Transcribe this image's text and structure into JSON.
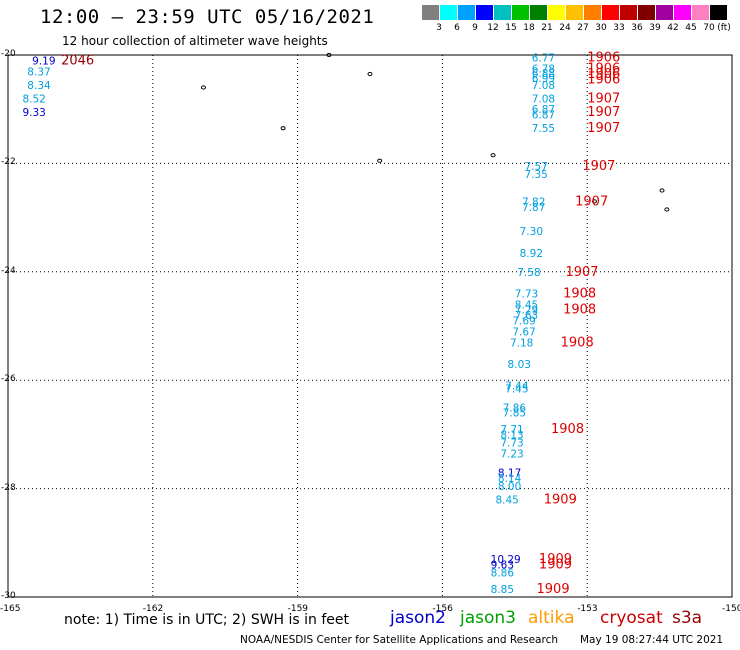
{
  "header": {
    "title": "12:00 — 23:59 UTC 05/16/2021",
    "subtitle": "12 hour collection of altimeter wave heights"
  },
  "scale": {
    "labels": [
      "3",
      "6",
      "9",
      "12",
      "15",
      "18",
      "21",
      "24",
      "27",
      "30",
      "33",
      "36",
      "39",
      "42",
      "45",
      "70",
      "(ft)"
    ],
    "colors": [
      "#808080",
      "#00ffff",
      "#00a0ff",
      "#0000ff",
      "#00c0c0",
      "#00c000",
      "#008000",
      "#ffff00",
      "#ffc000",
      "#ff8000",
      "#ff0000",
      "#c00000",
      "#800000",
      "#a000a0",
      "#ff00ff",
      "#ff80c0",
      "#000000"
    ]
  },
  "axes": {
    "lat_labels": [
      "-20",
      "-22",
      "-24",
      "-26",
      "-28",
      "-30"
    ],
    "lon_labels": [
      "-165",
      "-162",
      "-159",
      "-156",
      "-153",
      "-150"
    ],
    "lat_range": [
      -30,
      -20
    ],
    "lon_range": [
      -165,
      -150
    ]
  },
  "footer": {
    "note": "note: 1) Time is in UTC; 2) SWH is in feet",
    "credit": "NOAA/NESDIS Center for Satellite Applications and Research",
    "timestamp": "May 19 08:27:44 UTC 2021"
  },
  "satellites": [
    {
      "name": "jason2",
      "color": "#0000cc"
    },
    {
      "name": "jason3",
      "color": "#00a000"
    },
    {
      "name": "altika",
      "color": "#ff9900"
    },
    {
      "name": "cryosat",
      "color": "#cc0000"
    },
    {
      "name": "s3a",
      "color": "#990000"
    }
  ],
  "colors": {
    "swh_light_blue": "#00a0e0",
    "swh_dark_blue": "#0000cc",
    "time_red": "#e00000",
    "time_dark_red": "#990000"
  },
  "chart_data": {
    "type": "scatter",
    "observations": [
      {
        "lon": -164.5,
        "lat": -20.1,
        "text": "9.19",
        "kind": "swh",
        "color": "#0000cc"
      },
      {
        "lon": -164.6,
        "lat": -20.3,
        "text": "8.37",
        "kind": "swh",
        "color": "#00a0e0"
      },
      {
        "lon": -164.6,
        "lat": -20.55,
        "text": "8.34",
        "kind": "swh",
        "color": "#00a0e0"
      },
      {
        "lon": -164.7,
        "lat": -20.8,
        "text": "8.52",
        "kind": "swh",
        "color": "#00a0e0"
      },
      {
        "lon": -164.7,
        "lat": -21.05,
        "text": "9.33",
        "kind": "swh",
        "color": "#0000cc"
      },
      {
        "lon": -163.9,
        "lat": -20.1,
        "text": "2046",
        "kind": "time",
        "color": "#990000"
      },
      {
        "lon": -154.15,
        "lat": -20.05,
        "text": "6.77",
        "kind": "swh",
        "color": "#00a0e0"
      },
      {
        "lon": -154.15,
        "lat": -20.25,
        "text": "6.78",
        "kind": "swh",
        "color": "#00a0e0"
      },
      {
        "lon": -154.15,
        "lat": -20.33,
        "text": "6.88",
        "kind": "swh",
        "color": "#00a0e0"
      },
      {
        "lon": -154.15,
        "lat": -20.42,
        "text": "6.99",
        "kind": "swh",
        "color": "#00a0e0"
      },
      {
        "lon": -154.15,
        "lat": -20.55,
        "text": "7.08",
        "kind": "swh",
        "color": "#00a0e0"
      },
      {
        "lon": -154.15,
        "lat": -20.8,
        "text": "7.08",
        "kind": "swh",
        "color": "#00a0e0"
      },
      {
        "lon": -154.15,
        "lat": -21.0,
        "text": "6.87",
        "kind": "swh",
        "color": "#00a0e0"
      },
      {
        "lon": -154.15,
        "lat": -21.1,
        "text": "6.87",
        "kind": "swh",
        "color": "#00a0e0"
      },
      {
        "lon": -154.15,
        "lat": -21.35,
        "text": "7.55",
        "kind": "swh",
        "color": "#00a0e0"
      },
      {
        "lon": -153.0,
        "lat": -20.05,
        "text": "1906",
        "kind": "time",
        "color": "#e00000"
      },
      {
        "lon": -153.0,
        "lat": -20.25,
        "text": "1906",
        "kind": "time",
        "color": "#e00000"
      },
      {
        "lon": -153.0,
        "lat": -20.35,
        "text": "1906",
        "kind": "time",
        "color": "#e00000"
      },
      {
        "lon": -153.0,
        "lat": -20.45,
        "text": "1906",
        "kind": "time",
        "color": "#e00000"
      },
      {
        "lon": -153.0,
        "lat": -20.8,
        "text": "1907",
        "kind": "time",
        "color": "#e00000"
      },
      {
        "lon": -153.0,
        "lat": -21.05,
        "text": "1907",
        "kind": "time",
        "color": "#e00000"
      },
      {
        "lon": -153.0,
        "lat": -21.35,
        "text": "1907",
        "kind": "time",
        "color": "#e00000"
      },
      {
        "lon": -154.3,
        "lat": -22.05,
        "text": "7.57",
        "kind": "swh",
        "color": "#00a0e0"
      },
      {
        "lon": -154.3,
        "lat": -22.2,
        "text": "7.35",
        "kind": "swh",
        "color": "#00a0e0"
      },
      {
        "lon": -153.1,
        "lat": -22.05,
        "text": "1907",
        "kind": "time",
        "color": "#e00000"
      },
      {
        "lon": -154.35,
        "lat": -22.7,
        "text": "7.82",
        "kind": "swh",
        "color": "#00a0e0"
      },
      {
        "lon": -154.35,
        "lat": -22.8,
        "text": "7.87",
        "kind": "swh",
        "color": "#00a0e0"
      },
      {
        "lon": -153.25,
        "lat": -22.7,
        "text": "1907",
        "kind": "time",
        "color": "#e00000"
      },
      {
        "lon": -154.4,
        "lat": -23.25,
        "text": "7.30",
        "kind": "swh",
        "color": "#00a0e0"
      },
      {
        "lon": -154.4,
        "lat": -23.65,
        "text": "8.92",
        "kind": "swh",
        "color": "#00a0e0"
      },
      {
        "lon": -154.45,
        "lat": -24.0,
        "text": "7.58",
        "kind": "swh",
        "color": "#00a0e0"
      },
      {
        "lon": -153.45,
        "lat": -24.0,
        "text": "1907",
        "kind": "time",
        "color": "#e00000"
      },
      {
        "lon": -154.5,
        "lat": -24.4,
        "text": "7.73",
        "kind": "swh",
        "color": "#00a0e0"
      },
      {
        "lon": -154.5,
        "lat": -24.6,
        "text": "8.45",
        "kind": "swh",
        "color": "#00a0e0"
      },
      {
        "lon": -154.5,
        "lat": -24.7,
        "text": "7.29",
        "kind": "swh",
        "color": "#00a0e0"
      },
      {
        "lon": -154.5,
        "lat": -24.8,
        "text": "7.63",
        "kind": "swh",
        "color": "#00a0e0"
      },
      {
        "lon": -154.55,
        "lat": -24.9,
        "text": "7.69",
        "kind": "swh",
        "color": "#00a0e0"
      },
      {
        "lon": -154.55,
        "lat": -25.1,
        "text": "7.67",
        "kind": "swh",
        "color": "#00a0e0"
      },
      {
        "lon": -154.6,
        "lat": -25.3,
        "text": "7.18",
        "kind": "swh",
        "color": "#00a0e0"
      },
      {
        "lon": -153.5,
        "lat": -24.4,
        "text": "1908",
        "kind": "time",
        "color": "#e00000"
      },
      {
        "lon": -153.5,
        "lat": -24.7,
        "text": "1908",
        "kind": "time",
        "color": "#e00000"
      },
      {
        "lon": -153.55,
        "lat": -25.3,
        "text": "1908",
        "kind": "time",
        "color": "#e00000"
      },
      {
        "lon": -154.65,
        "lat": -25.7,
        "text": "8.03",
        "kind": "swh",
        "color": "#00a0e0"
      },
      {
        "lon": -154.7,
        "lat": -26.1,
        "text": "7.44",
        "kind": "swh",
        "color": "#00a0e0"
      },
      {
        "lon": -154.7,
        "lat": -26.15,
        "text": "7.45",
        "kind": "swh",
        "color": "#00a0e0"
      },
      {
        "lon": -154.75,
        "lat": -26.5,
        "text": "7.86",
        "kind": "swh",
        "color": "#00a0e0"
      },
      {
        "lon": -154.75,
        "lat": -26.6,
        "text": "7.85",
        "kind": "swh",
        "color": "#00a0e0"
      },
      {
        "lon": -154.8,
        "lat": -26.9,
        "text": "7.71",
        "kind": "swh",
        "color": "#00a0e0"
      },
      {
        "lon": -154.8,
        "lat": -27.0,
        "text": "8.13",
        "kind": "swh",
        "color": "#00a0e0"
      },
      {
        "lon": -154.8,
        "lat": -27.15,
        "text": "7.73",
        "kind": "swh",
        "color": "#00a0e0"
      },
      {
        "lon": -154.8,
        "lat": -27.35,
        "text": "7.23",
        "kind": "swh",
        "color": "#00a0e0"
      },
      {
        "lon": -153.75,
        "lat": -26.9,
        "text": "1908",
        "kind": "time",
        "color": "#e00000"
      },
      {
        "lon": -154.85,
        "lat": -27.7,
        "text": "8.17",
        "kind": "swh",
        "color": "#0000cc"
      },
      {
        "lon": -154.85,
        "lat": -27.8,
        "text": "8.14",
        "kind": "swh",
        "color": "#00a0e0"
      },
      {
        "lon": -154.85,
        "lat": -27.95,
        "text": "8.00",
        "kind": "swh",
        "color": "#00a0e0"
      },
      {
        "lon": -154.9,
        "lat": -28.2,
        "text": "8.45",
        "kind": "swh",
        "color": "#00a0e0"
      },
      {
        "lon": -153.9,
        "lat": -28.2,
        "text": "1909",
        "kind": "time",
        "color": "#e00000"
      },
      {
        "lon": -155.0,
        "lat": -29.3,
        "text": "10.29",
        "kind": "swh",
        "color": "#0000cc"
      },
      {
        "lon": -155.0,
        "lat": -29.4,
        "text": "9.63",
        "kind": "swh",
        "color": "#0000cc"
      },
      {
        "lon": -154.0,
        "lat": -29.3,
        "text": "1909",
        "kind": "time",
        "color": "#e00000"
      },
      {
        "lon": -154.0,
        "lat": -29.4,
        "text": "1909",
        "kind": "time",
        "color": "#e00000"
      },
      {
        "lon": -155.0,
        "lat": -29.55,
        "text": "8.86",
        "kind": "swh",
        "color": "#00a0e0"
      },
      {
        "lon": -155.0,
        "lat": -29.85,
        "text": "8.85",
        "kind": "swh",
        "color": "#00a0e0"
      },
      {
        "lon": -154.05,
        "lat": -29.85,
        "text": "1909",
        "kind": "time",
        "color": "#e00000"
      }
    ],
    "islands": [
      {
        "lon": -158.35,
        "lat": -20.0
      },
      {
        "lon": -160.95,
        "lat": -20.6
      },
      {
        "lon": -159.3,
        "lat": -21.35
      },
      {
        "lon": -157.5,
        "lat": -20.35
      },
      {
        "lon": -157.3,
        "lat": -21.95
      },
      {
        "lon": -154.95,
        "lat": -21.85
      },
      {
        "lon": -151.45,
        "lat": -22.5
      },
      {
        "lon": -151.35,
        "lat": -22.85
      },
      {
        "lon": -152.85,
        "lat": -22.7
      }
    ]
  }
}
